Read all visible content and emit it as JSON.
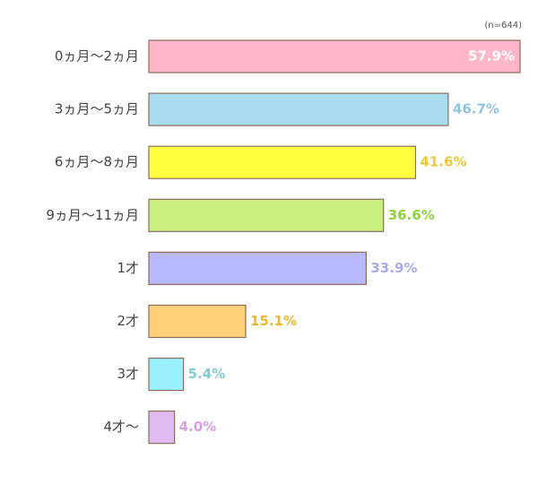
{
  "chart_data": {
    "type": "hbar",
    "note": "(n=644)",
    "categories": [
      "0ヵ月〜2ヵ月",
      "3ヵ月〜5ヵ月",
      "6ヵ月〜8ヵ月",
      "9ヵ月〜11ヵ月",
      "1才",
      "2才",
      "3才",
      "4才〜"
    ],
    "values": [
      57.9,
      46.7,
      41.6,
      36.6,
      33.9,
      15.1,
      5.4,
      4.0
    ],
    "value_labels": [
      "57.9%",
      "46.7%",
      "41.6%",
      "36.6%",
      "33.9%",
      "15.1%",
      "5.4%",
      "4.0%"
    ],
    "colors": [
      "#ffb7c9",
      "#a9dcef",
      "#ffff40",
      "#c9ef80",
      "#b9b9ff",
      "#ffd27a",
      "#9bf0ff",
      "#e0baf0"
    ],
    "label_colors": [
      "#ffffff",
      "#8ec3e2",
      "#efc832",
      "#8ed23a",
      "#a9a9f2",
      "#f0b72e",
      "#7fcbd6",
      "#d79ee8"
    ]
  }
}
